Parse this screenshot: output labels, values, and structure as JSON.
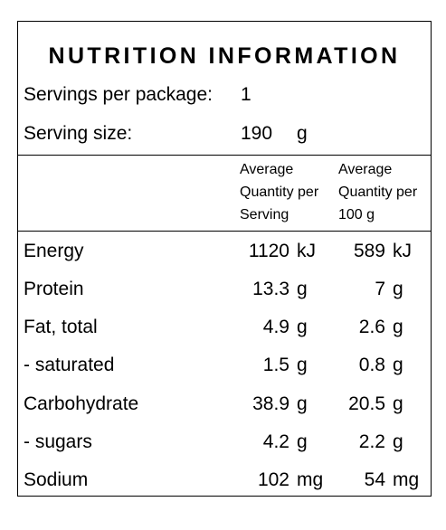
{
  "panel": {
    "title": "NUTRITION INFORMATION",
    "servings_label": "Servings per package:",
    "servings_value": "1",
    "serving_size_label": "Serving size:",
    "serving_size_value": "190",
    "serving_size_unit": "g"
  },
  "columns": {
    "per_serving": [
      "Average",
      "Quantity per",
      "Serving"
    ],
    "per_100g": [
      "Average",
      "Quantity per",
      "100 g"
    ]
  },
  "rows": [
    {
      "label": "Energy",
      "serving_value": "1120",
      "serving_unit": "kJ",
      "per100_value": "589",
      "per100_unit": "kJ"
    },
    {
      "label": "Protein",
      "serving_value": "13.3",
      "serving_unit": "g",
      "per100_value": "7",
      "per100_unit": "g"
    },
    {
      "label": "Fat, total",
      "serving_value": "4.9",
      "serving_unit": "g",
      "per100_value": "2.6",
      "per100_unit": "g"
    },
    {
      "label": "- saturated",
      "serving_value": "1.5",
      "serving_unit": "g",
      "per100_value": "0.8",
      "per100_unit": "g"
    },
    {
      "label": "Carbohydrate",
      "serving_value": "38.9",
      "serving_unit": "g",
      "per100_value": "20.5",
      "per100_unit": "g"
    },
    {
      "label": "- sugars",
      "serving_value": "4.2",
      "serving_unit": "g",
      "per100_value": "2.2",
      "per100_unit": "g"
    },
    {
      "label": "Sodium",
      "serving_value": "102",
      "serving_unit": "mg",
      "per100_value": "54",
      "per100_unit": "mg"
    }
  ]
}
